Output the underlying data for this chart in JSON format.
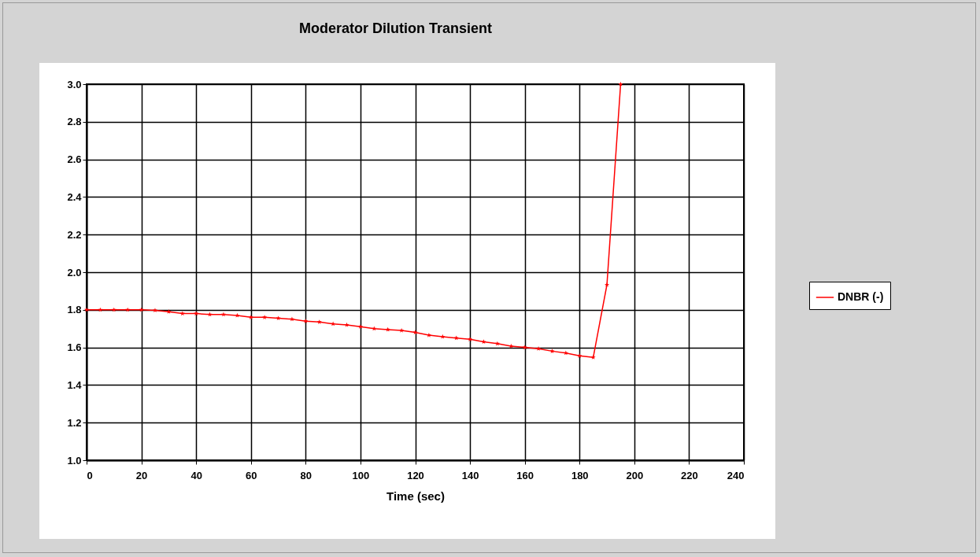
{
  "chart_data": {
    "type": "line",
    "title": "Moderator Dilution Transient",
    "xlabel": "Time (sec)",
    "x": [
      0,
      5,
      10,
      15,
      20,
      25,
      30,
      35,
      40,
      45,
      50,
      55,
      60,
      65,
      70,
      75,
      80,
      85,
      90,
      95,
      100,
      105,
      110,
      115,
      120,
      125,
      130,
      135,
      140,
      145,
      150,
      155,
      160,
      165,
      170,
      175,
      180,
      185,
      190,
      195
    ],
    "series": [
      {
        "name": "DNBR (-)",
        "color": "#ff0000",
        "values": [
          1.8,
          1.8,
          1.8,
          1.8,
          1.8,
          1.797,
          1.79,
          1.78,
          1.78,
          1.775,
          1.775,
          1.77,
          1.76,
          1.76,
          1.755,
          1.75,
          1.74,
          1.735,
          1.725,
          1.72,
          1.71,
          1.7,
          1.695,
          1.69,
          1.68,
          1.665,
          1.657,
          1.65,
          1.643,
          1.63,
          1.62,
          1.607,
          1.6,
          1.593,
          1.58,
          1.57,
          1.555,
          1.547,
          1.933,
          3.0
        ]
      }
    ],
    "xlim": [
      0,
      240
    ],
    "xticks": [
      0,
      20,
      40,
      60,
      80,
      100,
      120,
      140,
      160,
      180,
      200,
      220,
      240
    ],
    "ylim": [
      1.0,
      3.0
    ],
    "yticks": [
      {
        "value": 1.0,
        "label": "1.0"
      },
      {
        "value": 1.2,
        "label": "1.2"
      },
      {
        "value": 1.4,
        "label": "1.4"
      },
      {
        "value": 1.6,
        "label": "1.6"
      },
      {
        "value": 1.8,
        "label": "1.8"
      },
      {
        "value": 2.0,
        "label": "2.0"
      },
      {
        "value": 2.2,
        "label": "2.2"
      },
      {
        "value": 2.4,
        "label": "2.4"
      },
      {
        "value": 2.6,
        "label": "2.6"
      },
      {
        "value": 2.8,
        "label": "2.8"
      },
      {
        "value": 3.0,
        "label": "3.0"
      }
    ],
    "grid": true,
    "legend": "right",
    "marker": "star",
    "line_style": "solid"
  }
}
